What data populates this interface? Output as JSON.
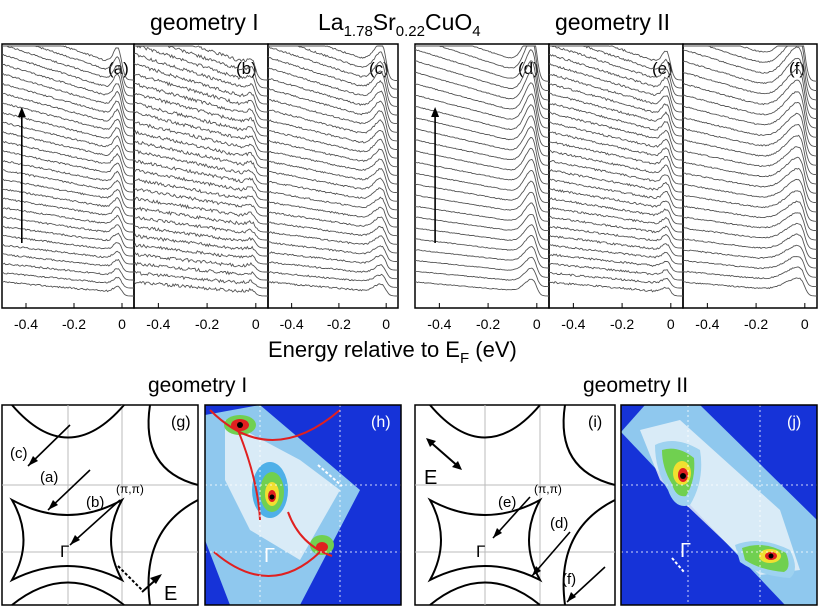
{
  "header": {
    "geometry_left": "geometry I",
    "geometry_right": "geometry II",
    "formula": {
      "p1": "La",
      "s1": "1.78",
      "p2": "Sr",
      "s2": "0.22",
      "p3": "CuO",
      "s3": "4"
    }
  },
  "chart_data": [
    {
      "type": "line",
      "group": "EDC stacks",
      "xlabel_main": "Energy relative to E",
      "xlabel_sub": "F",
      "xlabel_unit": " (eV)",
      "xlim": [
        -0.5,
        0.05
      ],
      "ticks": [
        -0.4,
        -0.2,
        0
      ],
      "tick_labels": [
        "-0.4",
        "-0.2",
        "0"
      ],
      "panels": [
        {
          "id": "a",
          "label": "(a)",
          "geometry": "geometry I",
          "n_curves": 28,
          "peak_height": 0.5,
          "peak_width": 0.03,
          "noise": 0.4,
          "arrow": true
        },
        {
          "id": "b",
          "label": "(b)",
          "geometry": "geometry I",
          "n_curves": 28,
          "peak_height": 0.2,
          "peak_width": 0.03,
          "noise": 0.8,
          "arrow": false
        },
        {
          "id": "c",
          "label": "(c)",
          "geometry": "geometry I",
          "n_curves": 26,
          "peak_height": 0.6,
          "peak_width": 0.05,
          "noise": 0.4,
          "arrow": false
        },
        {
          "id": "d",
          "label": "(d)",
          "geometry": "geometry II",
          "n_curves": 24,
          "peak_height": 1.0,
          "peak_width": 0.05,
          "noise": 0.2,
          "arrow": true
        },
        {
          "id": "e",
          "label": "(e)",
          "geometry": "geometry II",
          "n_curves": 28,
          "peak_height": 0.4,
          "peak_width": 0.03,
          "noise": 0.5,
          "arrow": false
        },
        {
          "id": "f",
          "label": "(f)",
          "geometry": "geometry II",
          "n_curves": 24,
          "peak_height": 1.0,
          "peak_width": 0.09,
          "noise": 0.3,
          "arrow": false
        }
      ]
    },
    {
      "type": "diagram",
      "group": "Fermi surface geometry",
      "panels": [
        {
          "id": "g",
          "label": "(g)",
          "geometry": "geometry I",
          "cut_labels": [
            "(a)",
            "(b)",
            "(c)"
          ],
          "point_label": "(π,π)",
          "gamma": "Γ",
          "polarization": "E"
        },
        {
          "id": "i",
          "label": "(i)",
          "geometry": "geometry II",
          "cut_labels": [
            "(d)",
            "(e)",
            "(f)"
          ],
          "point_label": "(π,π)",
          "gamma": "Γ",
          "polarization": "E"
        }
      ]
    },
    {
      "type": "heatmap",
      "group": "Fermi surface intensity maps",
      "panels": [
        {
          "id": "h",
          "label": "(h)",
          "geometry": "geometry I",
          "gamma": "Γ",
          "colormap": [
            "#1a3ed6",
            "#3a8ae8",
            "#9ed2f0",
            "#f0f6fa",
            "#70d050",
            "#f0e030",
            "#e02020",
            "#000000"
          ]
        },
        {
          "id": "j",
          "label": "(j)",
          "geometry": "geometry II",
          "gamma": "Γ",
          "colormap": [
            "#1a3ed6",
            "#3a8ae8",
            "#9ed2f0",
            "#f0f6fa",
            "#70d050",
            "#f0e030",
            "#e02020",
            "#000000"
          ]
        }
      ]
    }
  ]
}
